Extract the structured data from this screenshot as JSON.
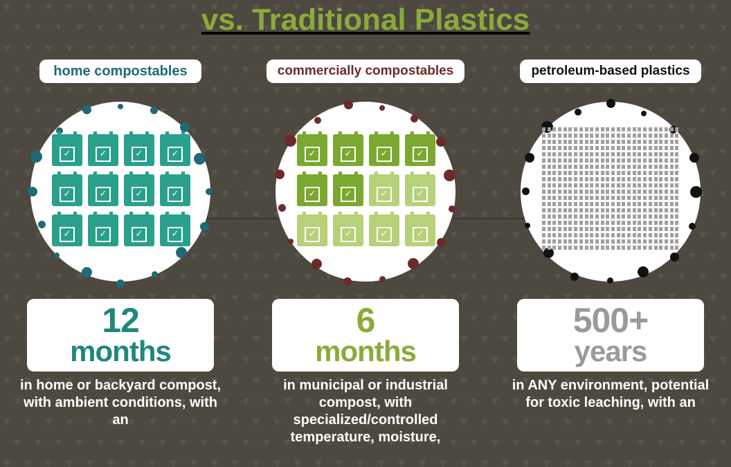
{
  "title": {
    "text": "vs. Traditional Plastics",
    "color": "#8aab3a"
  },
  "background_color": "#4d4840",
  "triangle_color": "#6a645b",
  "connector_color": "#3a352e",
  "columns": [
    {
      "key": "home",
      "label": "home compostables",
      "label_color": "#1f6a76",
      "dot_color": "#1f6a76",
      "duration_num": "12",
      "duration_unit": "months",
      "duration_color": "#1f877e",
      "desc": "in home or backyard compost, with ambient conditions, with an",
      "icon_type": "calendar",
      "icon_count": 12,
      "icon_palette": [
        "#29a08b"
      ]
    },
    {
      "key": "commercial",
      "label": "commercially compostables",
      "label_color": "#6e2a2a",
      "dot_color": "#6e2a2a",
      "duration_num": "6",
      "duration_unit": "months",
      "duration_color": "#8aab3a",
      "desc": "in municipal or industrial compost, with specialized/controlled temperature, moisture,",
      "icon_type": "calendar",
      "icon_count": 12,
      "icon_palette": [
        "#7ba82e",
        "#7ba82e",
        "#7ba82e",
        "#7ba82e",
        "#7ba82e",
        "#7ba82e",
        "#b7d179",
        "#b7d179",
        "#b7d179",
        "#b7d179",
        "#b7d179",
        "#b7d179"
      ]
    },
    {
      "key": "petroleum",
      "label": "petroleum-based plastics",
      "label_color": "#111111",
      "dot_color": "#111111",
      "duration_num": "500+",
      "duration_unit": "years",
      "duration_color": "#9a9a9a",
      "desc": "in ANY environment, potential for toxic leaching, with an",
      "icon_type": "dense",
      "dense_color": "#a0a0a0",
      "dense_cols": 26,
      "dense_rows": 20
    }
  ],
  "orbit": {
    "count": 16,
    "radius": 128,
    "min_size": 8,
    "max_size": 17
  }
}
